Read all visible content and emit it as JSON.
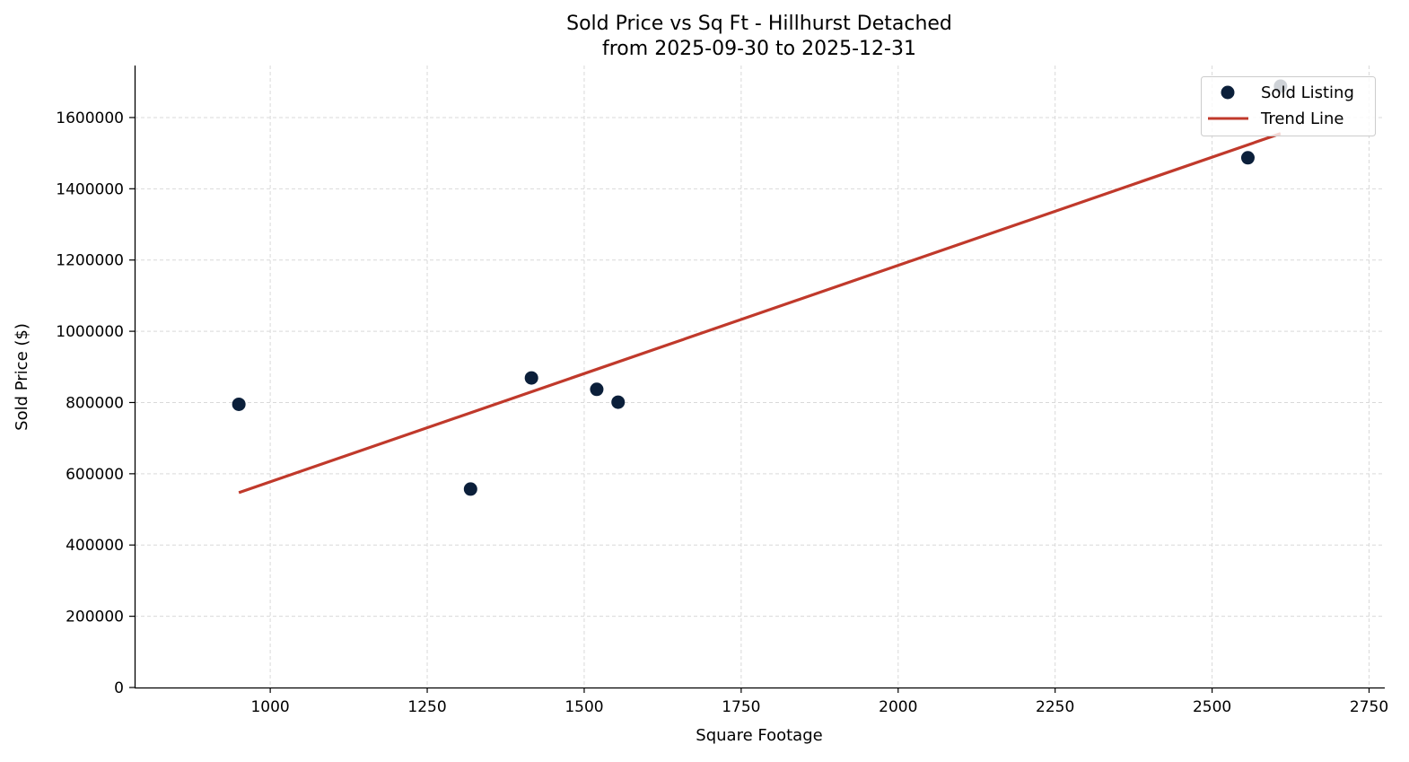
{
  "chart_data": {
    "type": "scatter",
    "title": "Sold Price vs Sq Ft - Hillhurst Detached",
    "subtitle": "from 2025-09-30 to 2025-12-31",
    "xlabel": "Square Footage",
    "ylabel": "Sold Price ($)",
    "xlim": [
      784,
      2775
    ],
    "ylim": [
      0,
      1746000
    ],
    "xticks": [
      1000,
      1250,
      1500,
      1750,
      2000,
      2250,
      2500,
      2750
    ],
    "yticks": [
      0,
      200000,
      400000,
      600000,
      800000,
      1000000,
      1200000,
      1400000,
      1600000
    ],
    "grid": true,
    "legend_position": "top-right",
    "series": [
      {
        "name": "Sold Listing",
        "type": "scatter",
        "color": "#0b1f3a",
        "points": [
          {
            "x": 950,
            "y": 795000
          },
          {
            "x": 1319,
            "y": 557000
          },
          {
            "x": 1416,
            "y": 869000
          },
          {
            "x": 1520,
            "y": 837000
          },
          {
            "x": 1554,
            "y": 801000
          },
          {
            "x": 2557,
            "y": 1487000
          },
          {
            "x": 2609,
            "y": 1688000
          }
        ]
      },
      {
        "name": "Trend Line",
        "type": "line",
        "color": "#c0392b",
        "points": [
          {
            "x": 950,
            "y": 547000
          },
          {
            "x": 2609,
            "y": 1555000
          }
        ]
      }
    ]
  }
}
